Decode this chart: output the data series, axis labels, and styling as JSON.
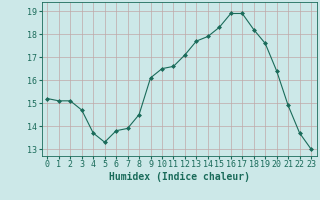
{
  "xlabel": "Humidex (Indice chaleur)",
  "ylabel": "",
  "x_values": [
    0,
    1,
    2,
    3,
    4,
    5,
    6,
    7,
    8,
    9,
    10,
    11,
    12,
    13,
    14,
    15,
    16,
    17,
    18,
    19,
    20,
    21,
    22,
    23
  ],
  "y_values": [
    15.2,
    15.1,
    15.1,
    14.7,
    13.7,
    13.3,
    13.8,
    13.9,
    14.5,
    16.1,
    16.5,
    16.6,
    17.1,
    17.7,
    17.9,
    18.3,
    18.9,
    18.9,
    18.2,
    17.6,
    16.4,
    14.9,
    13.7,
    13.0
  ],
  "line_color": "#1a6b5a",
  "marker": "D",
  "marker_size": 2.0,
  "background_color": "#cce8e8",
  "grid_color": "#c0a8a8",
  "ylim": [
    12.7,
    19.4
  ],
  "xlim": [
    -0.5,
    23.5
  ],
  "yticks": [
    13,
    14,
    15,
    16,
    17,
    18,
    19
  ],
  "xticks": [
    0,
    1,
    2,
    3,
    4,
    5,
    6,
    7,
    8,
    9,
    10,
    11,
    12,
    13,
    14,
    15,
    16,
    17,
    18,
    19,
    20,
    21,
    22,
    23
  ],
  "tick_color": "#1a6b5a",
  "label_color": "#1a6b5a",
  "font_size": 6.0,
  "xlabel_font_size": 7.0
}
